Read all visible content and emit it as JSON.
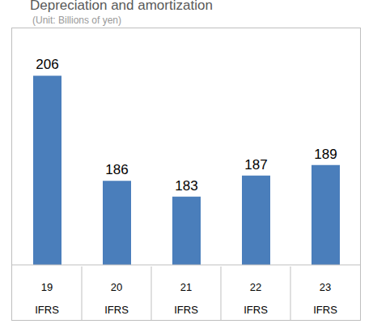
{
  "chart_data": {
    "type": "bar",
    "title": "Depreciation and amortization",
    "subtitle": "(Unit: Billions of yen)",
    "categories": [
      "19",
      "20",
      "21",
      "22",
      "23"
    ],
    "category_sublabels": [
      "IFRS",
      "IFRS",
      "IFRS",
      "IFRS",
      "IFRS"
    ],
    "values": [
      206,
      186,
      183,
      187,
      189
    ],
    "color": "#4a7ebb",
    "ylim": [
      170,
      215
    ],
    "data_labels": true,
    "tick_labels": "x",
    "grid": false
  }
}
